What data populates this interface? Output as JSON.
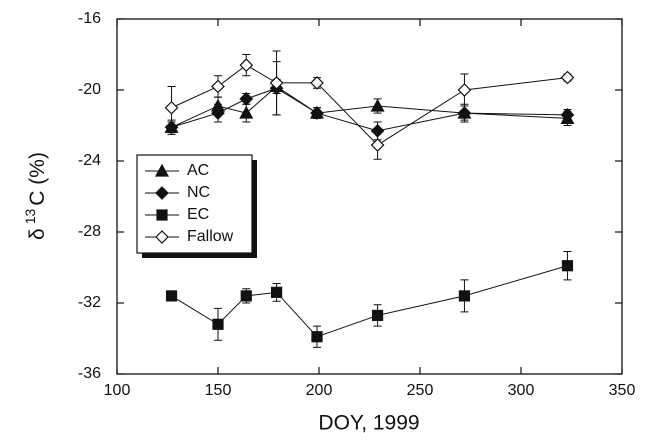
{
  "chart_data": {
    "type": "line",
    "xlabel": "DOY, 1999",
    "ylabel_parts": [
      "δ",
      "13",
      "C (%)"
    ],
    "x": [
      127,
      150,
      164,
      179,
      199,
      229,
      272,
      323
    ],
    "series": [
      {
        "name": "AC",
        "color": "#111111",
        "marker": "triangle",
        "filled": true,
        "values": [
          -22.1,
          -20.9,
          -21.3,
          -19.8,
          -21.3,
          -20.9,
          -21.3,
          -21.6
        ],
        "errors": [
          0.4,
          0.5,
          0.5,
          0.4,
          0.3,
          0.4,
          0.4,
          0.4
        ]
      },
      {
        "name": "NC",
        "color": "#111111",
        "marker": "diamond",
        "filled": true,
        "values": [
          -22.1,
          -21.3,
          -20.5,
          -19.9,
          -21.3,
          -22.3,
          -21.3,
          -21.4
        ],
        "errors": [
          0.3,
          0.5,
          0.3,
          1.5,
          0.3,
          0.5,
          0.5,
          0.3
        ]
      },
      {
        "name": "EC",
        "color": "#111111",
        "marker": "square",
        "filled": true,
        "values": [
          -31.6,
          -33.2,
          -31.6,
          -31.4,
          -33.9,
          -32.7,
          -31.6,
          -29.9
        ],
        "errors": [
          0.2,
          0.9,
          0.4,
          0.5,
          0.6,
          0.6,
          0.9,
          0.8
        ]
      },
      {
        "name": "Fallow",
        "color": "#111111",
        "marker": "diamond",
        "filled": false,
        "values": [
          -21.0,
          -19.8,
          -18.6,
          -19.6,
          -19.6,
          -23.1,
          -20.0,
          -19.3
        ],
        "errors": [
          1.2,
          0.6,
          0.6,
          1.8,
          0.3,
          0.8,
          0.9,
          0.2
        ]
      }
    ],
    "xlim": [
      100,
      350
    ],
    "xticks": [
      100,
      150,
      200,
      250,
      300,
      350
    ],
    "ylim": [
      -36,
      -16
    ],
    "yticks": [
      -36,
      -32,
      -28,
      -24,
      -20,
      -16
    ],
    "grid": false,
    "legend": "upper left"
  }
}
